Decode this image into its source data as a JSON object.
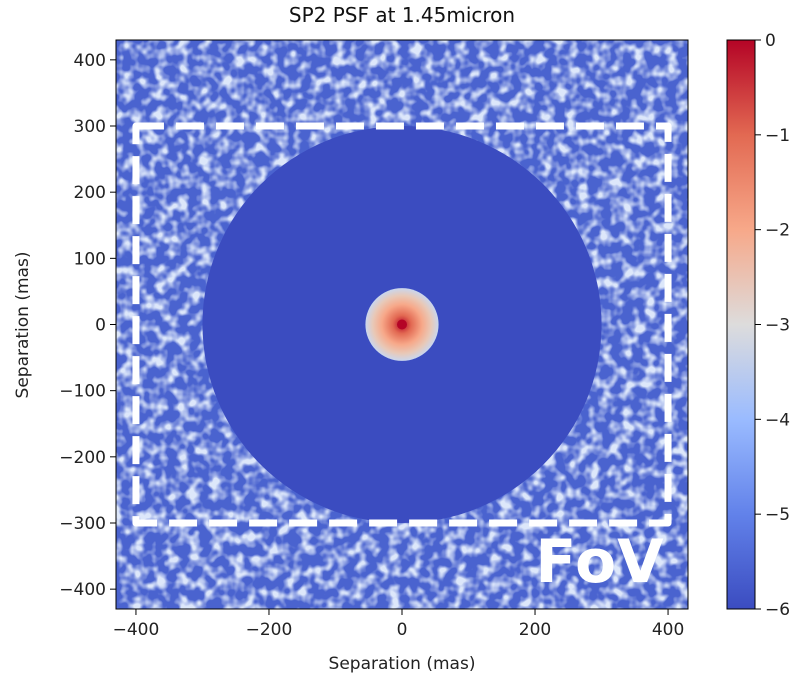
{
  "chart_data": {
    "type": "heatmap",
    "title": "SP2 PSF at 1.45micron",
    "xlabel": "Separation (mas)",
    "ylabel": "Separation (mas)",
    "xlim": [
      -430,
      430
    ],
    "ylim": [
      -430,
      430
    ],
    "x_ticks": [
      -400,
      -200,
      0,
      200,
      400
    ],
    "y_ticks": [
      400,
      300,
      200,
      100,
      0,
      -100,
      -200,
      -300,
      -400
    ],
    "colorbar": {
      "min": -6,
      "max": 0,
      "ticks": [
        0,
        -1,
        -2,
        -3,
        -4,
        -5,
        -6
      ],
      "colormap": "coolwarm"
    },
    "dark_hole_radius": 300,
    "core_radius": 55,
    "fov": {
      "x_range": [
        -400,
        400
      ],
      "y_range": [
        -300,
        300
      ]
    },
    "annotation": "FoV",
    "colors": {
      "background_speckle": "#3b4cc0",
      "speckle_light": "#b9cff5",
      "dark_hole": "#3b4cc0",
      "peak": "#b40426",
      "fov_outline": "#ffffff"
    }
  }
}
